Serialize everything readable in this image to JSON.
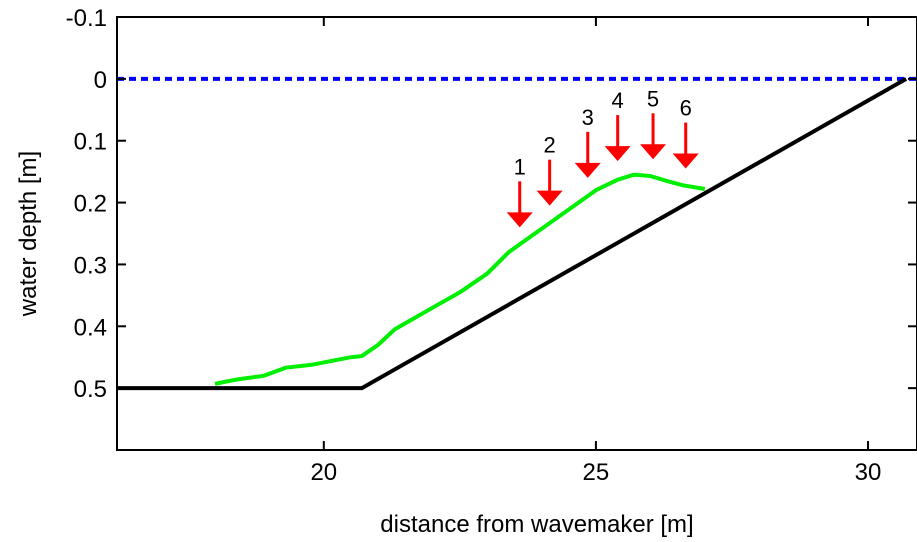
{
  "chart_data": {
    "type": "line",
    "xlabel": "distance from wavemaker  [m]",
    "ylabel": "water depth  [m]",
    "xlim": [
      16.2,
      30.9
    ],
    "ylim": [
      0.6,
      -0.1
    ],
    "y_reversed": true,
    "x_ticks": [
      20,
      25,
      30
    ],
    "y_ticks": [
      -0.1,
      0,
      0.1,
      0.2,
      0.3,
      0.4,
      0.5
    ],
    "x_tick_labels": [
      "20",
      "25",
      "30"
    ],
    "y_tick_labels": [
      "-0.1",
      "0",
      "0.1",
      "0.2",
      "0.3",
      "0.4",
      "0.5"
    ],
    "grid": false,
    "series": [
      {
        "id": "still-water-level",
        "style": "dashed",
        "color": "#0000ff",
        "x": [
          16.2,
          30.9
        ],
        "y": [
          0,
          0
        ]
      },
      {
        "id": "bottom-profile",
        "style": "solid",
        "color": "#000000",
        "x": [
          16.2,
          20.7,
          30.7
        ],
        "y": [
          0.5,
          0.5,
          0
        ]
      },
      {
        "id": "bar-profile",
        "style": "solid",
        "color": "#00ee00",
        "x": [
          18.0,
          18.4,
          18.9,
          19.3,
          19.8,
          20.2,
          20.5,
          20.7,
          21.0,
          21.3,
          21.6,
          22.0,
          22.5,
          23.0,
          23.4,
          23.8,
          24.2,
          24.6,
          25.0,
          25.4,
          25.7,
          26.0,
          26.3,
          26.6,
          27.0
        ],
        "y": [
          0.493,
          0.486,
          0.48,
          0.467,
          0.462,
          0.455,
          0.45,
          0.448,
          0.43,
          0.405,
          0.39,
          0.37,
          0.345,
          0.315,
          0.28,
          0.255,
          0.23,
          0.205,
          0.18,
          0.163,
          0.155,
          0.157,
          0.165,
          0.172,
          0.178
        ]
      }
    ],
    "annotations": [
      {
        "label": "1",
        "x": 23.6,
        "y_tip": 0.24
      },
      {
        "label": "2",
        "x": 24.15,
        "y_tip": 0.205
      },
      {
        "label": "3",
        "x": 24.85,
        "y_tip": 0.16
      },
      {
        "label": "4",
        "x": 25.4,
        "y_tip": 0.133
      },
      {
        "label": "5",
        "x": 26.05,
        "y_tip": 0.13
      },
      {
        "label": "6",
        "x": 26.65,
        "y_tip": 0.145
      }
    ],
    "annotation_color": "#ff0000"
  }
}
